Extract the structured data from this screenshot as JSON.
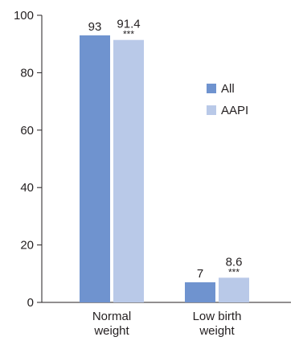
{
  "chart_data": {
    "type": "bar",
    "categories": [
      "Normal\nweight",
      "Low birth\nweight"
    ],
    "series": [
      {
        "name": "All",
        "values": [
          93,
          7
        ],
        "labels": [
          "93",
          "7"
        ],
        "annotations": [
          "",
          ""
        ],
        "color": "#6f93cf"
      },
      {
        "name": "AAPI",
        "values": [
          91.4,
          8.6
        ],
        "labels": [
          "91.4",
          "8.6"
        ],
        "annotations": [
          "***",
          "***"
        ],
        "color": "#b9c9e8"
      }
    ],
    "ylim": [
      0,
      100
    ],
    "yticks": [
      0,
      20,
      40,
      60,
      80,
      100
    ],
    "grid": false,
    "legend_position": "right"
  }
}
